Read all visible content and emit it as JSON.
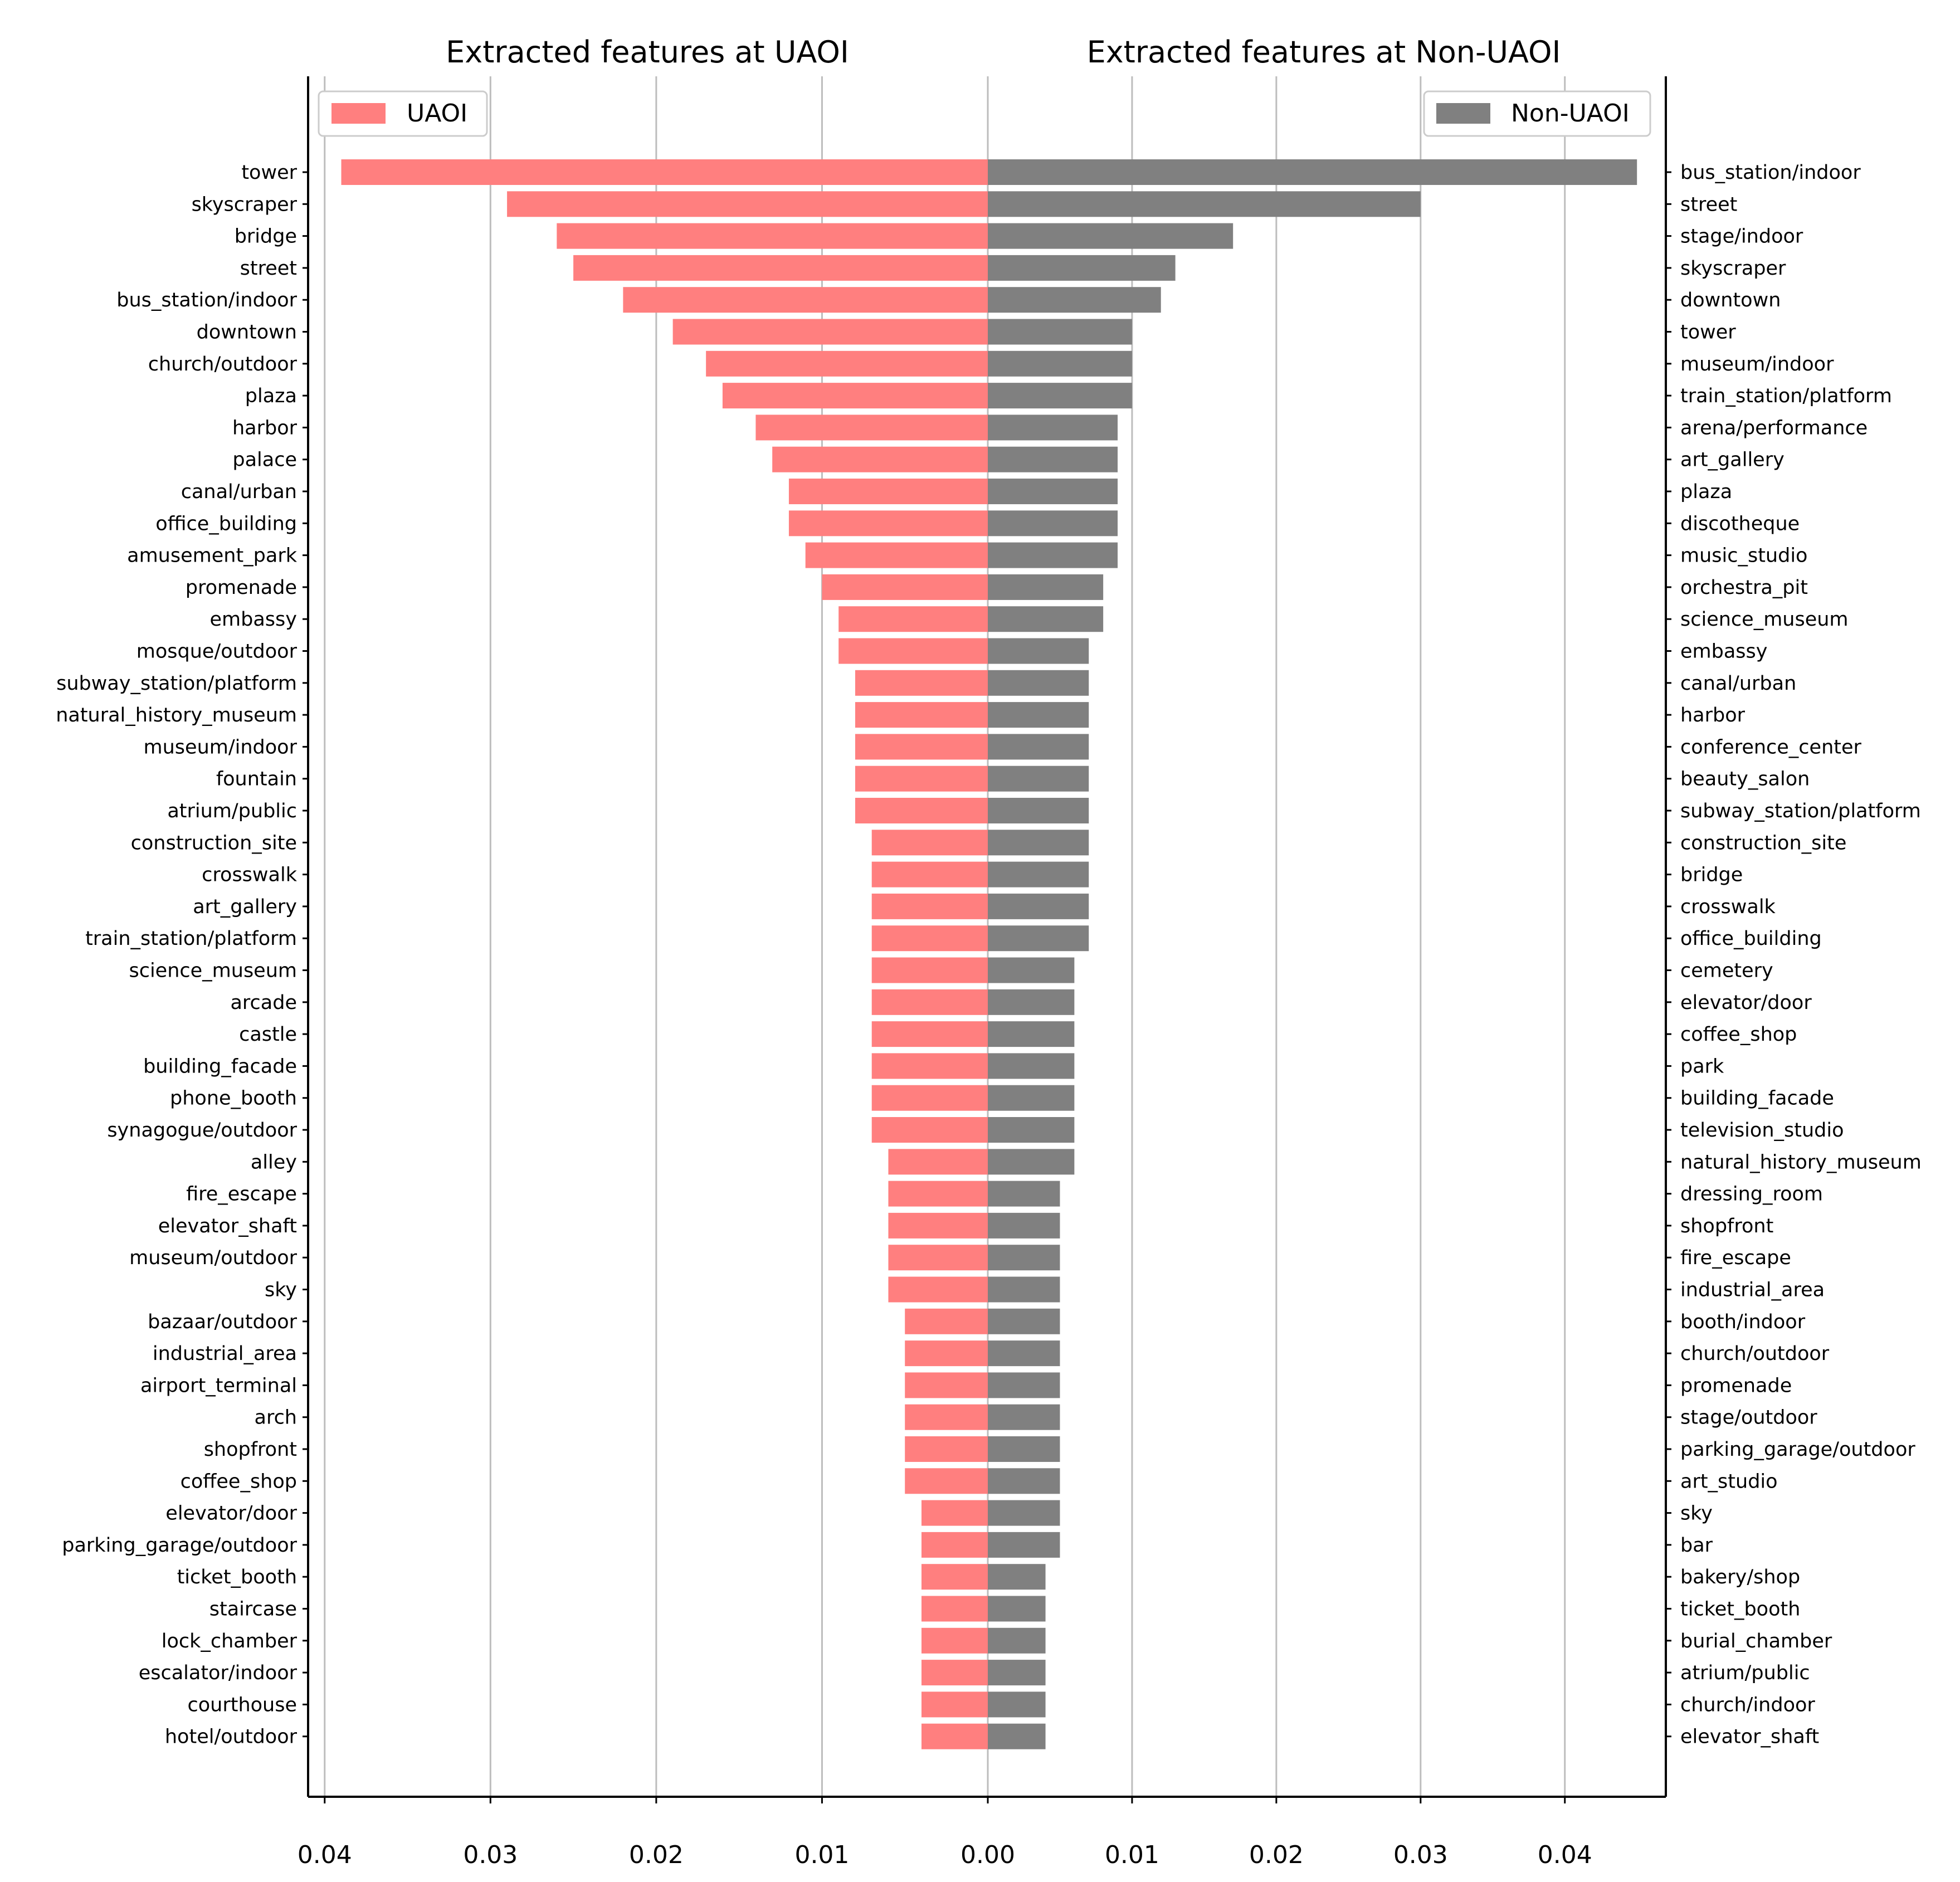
{
  "chart_data": [
    {
      "type": "bar",
      "orientation": "horizontal",
      "direction": "reversed",
      "title": "Extracted features at UAOI",
      "legend": "UAOI",
      "legend_position": "top-left",
      "color": "#ff7f7f",
      "xlim": [
        0.041,
        0
      ],
      "ticks": [
        "0.04",
        "0.03",
        "0.02",
        "0.01",
        "0.00"
      ],
      "tick_values": [
        0.04,
        0.03,
        0.02,
        0.01,
        0.0
      ],
      "grid": true,
      "categories": [
        "tower",
        "skyscraper",
        "bridge",
        "street",
        "bus_station/indoor",
        "downtown",
        "church/outdoor",
        "plaza",
        "harbor",
        "palace",
        "canal/urban",
        "office_building",
        "amusement_park",
        "promenade",
        "embassy",
        "mosque/outdoor",
        "subway_station/platform",
        "natural_history_museum",
        "museum/indoor",
        "fountain",
        "atrium/public",
        "construction_site",
        "crosswalk",
        "art_gallery",
        "train_station/platform",
        "science_museum",
        "arcade",
        "castle",
        "building_facade",
        "phone_booth",
        "synagogue/outdoor",
        "alley",
        "fire_escape",
        "elevator_shaft",
        "museum/outdoor",
        "sky",
        "bazaar/outdoor",
        "industrial_area",
        "airport_terminal",
        "arch",
        "shopfront",
        "coffee_shop",
        "elevator/door",
        "parking_garage/outdoor",
        "ticket_booth",
        "staircase",
        "lock_chamber",
        "escalator/indoor",
        "courthouse",
        "hotel/outdoor"
      ],
      "values": [
        0.039,
        0.029,
        0.026,
        0.025,
        0.022,
        0.019,
        0.017,
        0.016,
        0.014,
        0.013,
        0.012,
        0.012,
        0.011,
        0.01,
        0.009,
        0.009,
        0.008,
        0.008,
        0.008,
        0.008,
        0.008,
        0.007,
        0.007,
        0.007,
        0.007,
        0.007,
        0.007,
        0.007,
        0.007,
        0.007,
        0.007,
        0.006,
        0.006,
        0.006,
        0.006,
        0.006,
        0.005,
        0.005,
        0.005,
        0.005,
        0.005,
        0.005,
        0.004,
        0.004,
        0.004,
        0.004,
        0.004,
        0.004,
        0.004,
        0.004
      ]
    },
    {
      "type": "bar",
      "orientation": "horizontal",
      "title": "Extracted features at Non-UAOI",
      "legend": "Non-UAOI",
      "legend_position": "top-right",
      "color": "#808080",
      "xlim": [
        0,
        0.047
      ],
      "ticks": [
        "0.00",
        "0.01",
        "0.02",
        "0.03",
        "0.04"
      ],
      "tick_values": [
        0.0,
        0.01,
        0.02,
        0.03,
        0.04
      ],
      "grid": true,
      "categories": [
        "bus_station/indoor",
        "street",
        "stage/indoor",
        "skyscraper",
        "downtown",
        "tower",
        "museum/indoor",
        "train_station/platform",
        "arena/performance",
        "art_gallery",
        "plaza",
        "discotheque",
        "music_studio",
        "orchestra_pit",
        "science_museum",
        "embassy",
        "canal/urban",
        "harbor",
        "conference_center",
        "beauty_salon",
        "subway_station/platform",
        "construction_site",
        "bridge",
        "crosswalk",
        "office_building",
        "cemetery",
        "elevator/door",
        "coffee_shop",
        "park",
        "building_facade",
        "television_studio",
        "natural_history_museum",
        "dressing_room",
        "shopfront",
        "fire_escape",
        "industrial_area",
        "booth/indoor",
        "church/outdoor",
        "promenade",
        "stage/outdoor",
        "parking_garage/outdoor",
        "art_studio",
        "sky",
        "bar",
        "bakery/shop",
        "ticket_booth",
        "burial_chamber",
        "atrium/public",
        "church/indoor",
        "elevator_shaft"
      ],
      "values": [
        0.045,
        0.03,
        0.017,
        0.013,
        0.012,
        0.01,
        0.01,
        0.01,
        0.009,
        0.009,
        0.009,
        0.009,
        0.009,
        0.008,
        0.008,
        0.007,
        0.007,
        0.007,
        0.007,
        0.007,
        0.007,
        0.007,
        0.007,
        0.007,
        0.007,
        0.006,
        0.006,
        0.006,
        0.006,
        0.006,
        0.006,
        0.006,
        0.005,
        0.005,
        0.005,
        0.005,
        0.005,
        0.005,
        0.005,
        0.005,
        0.005,
        0.005,
        0.005,
        0.005,
        0.004,
        0.004,
        0.004,
        0.004,
        0.004,
        0.004
      ]
    }
  ]
}
